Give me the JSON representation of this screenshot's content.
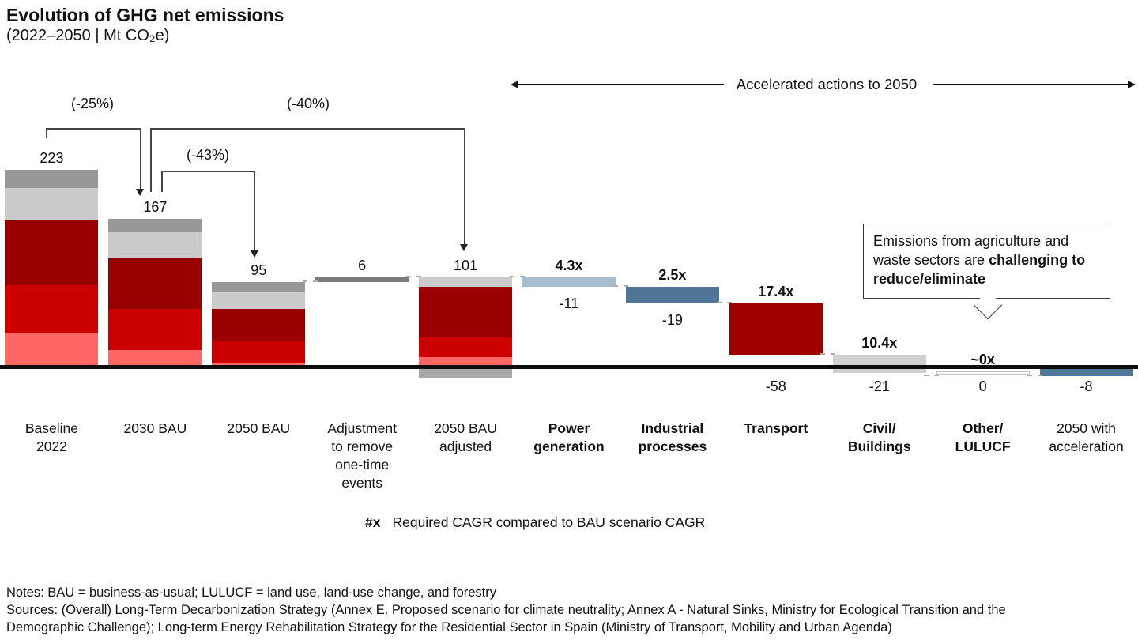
{
  "title": {
    "main": "Evolution of GHG net emissions",
    "subtitle": "(2022–2050 | Mt CO₂e)"
  },
  "header_arrow": {
    "label": "Accelerated actions to 2050"
  },
  "brackets": [
    {
      "label": "(-25%)"
    },
    {
      "label": "(-40%)"
    },
    {
      "label": "(-43%)"
    }
  ],
  "callout": {
    "text_normal": "Emissions from agriculture and waste sectors are ",
    "text_bold": "challenging to reduce/eliminate"
  },
  "legend": {
    "symbol": "#x",
    "text": "Required CAGR compared to BAU scenario CAGR"
  },
  "notes": {
    "line1": "Notes: BAU = business-as-usual; LULUCF = land use, land-use change, and forestry",
    "line2": "Sources: (Overall) Long-Term Decarbonization Strategy (Annex E. Proposed scenario for climate neutrality; Annex A - Natural Sinks, Ministry for Ecological Transition and the",
    "line3": "Demographic Challenge); Long-term Energy Rehabilitation Strategy for the Residential Sector in Spain (Ministry of Transport, Mobility and Urban Agenda)"
  },
  "colors": {
    "dark_gray": "#989898",
    "light_gray": "#cbcbcb",
    "civil_gray": "#d0d0d0",
    "dark_red": "#990000",
    "red": "#cc0000",
    "salmon": "#ff6666",
    "adj_gray": "#7c7c7c",
    "sink_gray": "#a8a8a8",
    "light_blue": "#a9bdd0",
    "slate": "#507597",
    "transport_red": "#a00000",
    "axis": "#0d0d0d"
  },
  "chart_data": {
    "type": "waterfall",
    "title": "Evolution of GHG net emissions",
    "subtitle": "(2022–2050 | Mt CO₂e)",
    "unit": "Mt CO2e",
    "ylabel": "Mt CO2e",
    "baseline_reductions": {
      "2030_BAU_vs_2022": "-25%",
      "2050_BAU_adjusted_vs_2022": "-40%",
      "2050_BAU_vs_2030": "-43%"
    },
    "columns": [
      {
        "label": "Baseline\n2022",
        "bold": false,
        "value": 223,
        "value_label": "223",
        "value_label_pos": "above",
        "top_level": 223,
        "segments": [
          [
            "dark_gray",
            21
          ],
          [
            "light_gray",
            36
          ],
          [
            "dark_red",
            74
          ],
          [
            "red",
            55
          ],
          [
            "salmon",
            37
          ]
        ]
      },
      {
        "label": "2030 BAU",
        "bold": false,
        "value": 167,
        "value_label": "167",
        "value_label_pos": "above",
        "top_level": 167,
        "segments": [
          [
            "dark_gray",
            14
          ],
          [
            "light_gray",
            30
          ],
          [
            "dark_red",
            58
          ],
          [
            "red",
            47
          ],
          [
            "salmon",
            18
          ]
        ]
      },
      {
        "label": "2050 BAU",
        "bold": false,
        "value": 95,
        "value_label": "95",
        "value_label_pos": "above",
        "top_level": 95,
        "segments": [
          [
            "dark_gray",
            11
          ],
          [
            "light_gray",
            19
          ],
          [
            "dark_red",
            36
          ],
          [
            "red",
            25
          ],
          [
            "salmon",
            4
          ]
        ]
      },
      {
        "label": "Adjustment\nto remove\none-time\nevents",
        "bold": false,
        "value": 6,
        "value_label": "6",
        "value_label_pos": "above",
        "top_level": 101,
        "segments": [
          [
            "adj_gray",
            6
          ]
        ]
      },
      {
        "label": "2050 BAU\nadjusted",
        "bold": false,
        "value": 101,
        "value_label": "101",
        "value_label_pos": "above",
        "top_level": 101,
        "segments": [
          [
            "light_gray",
            11
          ],
          [
            "dark_red",
            58
          ],
          [
            "red",
            22
          ],
          [
            "salmon",
            10
          ]
        ],
        "below_axis_segment": [
          "sink_gray",
          10
        ]
      },
      {
        "label": "Power\ngeneration",
        "bold": true,
        "value": -11,
        "value_label": "-11",
        "value_label_pos": "below_bar",
        "mult_label": "4.3x",
        "top_level": 101,
        "segments": [
          [
            "light_blue",
            11
          ]
        ]
      },
      {
        "label": "Industrial\nprocesses",
        "bold": true,
        "value": -19,
        "value_label": "-19",
        "value_label_pos": "below_bar",
        "mult_label": "2.5x",
        "top_level": 90,
        "segments": [
          [
            "slate",
            19
          ]
        ]
      },
      {
        "label": "Transport",
        "bold": true,
        "value": -58,
        "value_label": "-58",
        "value_label_pos": "below_axis",
        "mult_label": "17.4x",
        "top_level": 71,
        "segments": [
          [
            "transport_red",
            58
          ]
        ]
      },
      {
        "label": "Civil/\nBuildings",
        "bold": true,
        "value": -21,
        "value_label": "-21",
        "value_label_pos": "below_axis",
        "mult_label": "10.4x",
        "top_level": 13,
        "segments": [
          [
            "civil_gray",
            21
          ]
        ]
      },
      {
        "label": "Other/\nLULUCF",
        "bold": true,
        "value": 0,
        "value_label": "0",
        "value_label_pos": "below_axis",
        "mult_label": "~0x",
        "top_level": -8,
        "segments": [],
        "zero_strip": true
      },
      {
        "label": "2050 with\nacceleration",
        "bold": false,
        "value": -8,
        "value_label": "-8",
        "value_label_pos": "below_axis",
        "top_level": 0,
        "segments": [
          [
            "slate",
            8
          ]
        ]
      }
    ],
    "connectors": [
      {
        "from": 2,
        "to": 3,
        "level": 95
      },
      {
        "from": 3,
        "to": 4,
        "level": 101
      },
      {
        "from": 4,
        "to": 5,
        "level": 101
      },
      {
        "from": 5,
        "to": 6,
        "level": 90
      },
      {
        "from": 6,
        "to": 7,
        "level": 71
      },
      {
        "from": 7,
        "to": 8,
        "level": 13
      },
      {
        "from": 8,
        "to": 9,
        "level": -8
      },
      {
        "from": 9,
        "to": 10,
        "level": -8
      }
    ]
  }
}
